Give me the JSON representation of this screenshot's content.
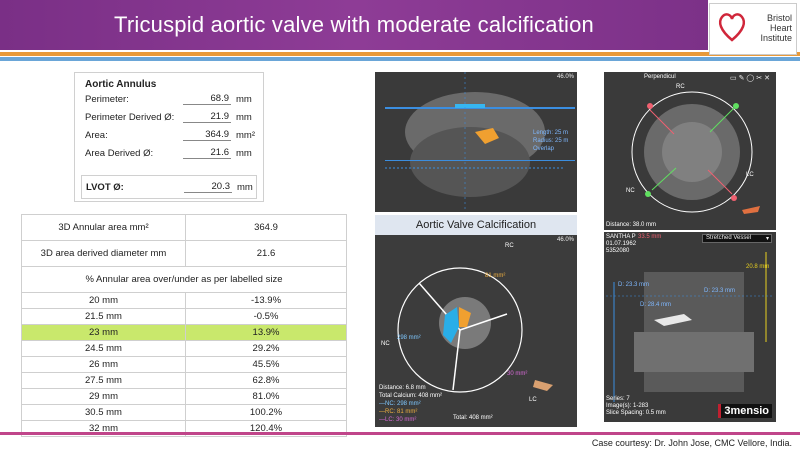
{
  "title": "Tricuspid aortic valve with moderate calcification",
  "logo": {
    "line1": "Bristol",
    "line2": "Heart",
    "line3": "Institute",
    "heart_color": "#d0263a"
  },
  "annulus": {
    "title": "Aortic Annulus",
    "rows": [
      {
        "label": "Perimeter:",
        "value": "68.9",
        "unit": "mm"
      },
      {
        "label": "Perimeter Derived Ø:",
        "value": "21.9",
        "unit": "mm"
      },
      {
        "label": "Area:",
        "value": "364.9",
        "unit": "mm²"
      },
      {
        "label": "Area Derived Ø:",
        "value": "21.6",
        "unit": "mm"
      }
    ],
    "lvot": {
      "label": "LVOT Ø:",
      "value": "20.3",
      "unit": "mm"
    }
  },
  "table": {
    "area_label": "3D Annular area mm²",
    "area_value": "364.9",
    "diam_label": "3D area derived diameter mm",
    "diam_value": "21.6",
    "section_header": "% Annular area over/under as per labelled size",
    "rows": [
      {
        "size": "20 mm",
        "pct": "-13.9%"
      },
      {
        "size": "21.5 mm",
        "pct": "-0.5%"
      },
      {
        "size": "23 mm",
        "pct": "13.9%"
      },
      {
        "size": "24.5 mm",
        "pct": "29.2%"
      },
      {
        "size": "26 mm",
        "pct": "45.5%"
      },
      {
        "size": "27.5 mm",
        "pct": "62.8%"
      },
      {
        "size": "29 mm",
        "pct": "81.0%"
      },
      {
        "size": "30.5 mm",
        "pct": "100.2%"
      },
      {
        "size": "32 mm",
        "pct": "120.4%"
      }
    ],
    "highlight_color": "#c9e86c"
  },
  "panels": {
    "top_left": {
      "zoom": "46.0%",
      "length_label": "Length: 25 m",
      "radius_label": "Radius: 25 m",
      "overlay": "Overlap"
    },
    "calcification_label": "Aortic Valve Calcification",
    "calc": {
      "zoom": "46.0%",
      "rc": "RC",
      "nc": "NC",
      "lc": "LC",
      "rc_area": "81 mm²",
      "nc_area": "298 mm²",
      "lc_area": "30 mm²",
      "distance": "Distance: 6.8 mm",
      "total_calcium": "Total Calcium: 408 mm²",
      "nc_line": "—NC: 298 mm²",
      "rc_line": "—RC: 81 mm²",
      "lc_line": "—LC: 30 mm²",
      "total": "Total: 408 mm²"
    },
    "right_top": {
      "header": "Perpendicul",
      "rc": "RC",
      "nc": "NC",
      "lc": "LC",
      "distance": "Distance: 38.0 mm"
    },
    "right_bottom": {
      "patient": "SANTHA P",
      "dob": "01.07.1962",
      "id": "5352080",
      "measure": "33.5 mm",
      "view": "Stretched Vessel",
      "m1": "20.8 mm",
      "m2": "D: 23.3 mm",
      "m3": "D: 23.3 mm",
      "m4": "D: 28.4 mm",
      "series": "Series: 7",
      "image": "Image(s): 1-283",
      "spacing": "Slice Spacing: 0.5 mm",
      "brand": "3mensio"
    }
  },
  "credit": "Case courtesy: Dr. John Jose, CMC Vellore,  India.",
  "colors": {
    "title_purple": "#8e3c96",
    "stripe_orange": "#e89a3a",
    "stripe_blue": "#6aa6d8",
    "footer_pink": "#c0458a"
  }
}
